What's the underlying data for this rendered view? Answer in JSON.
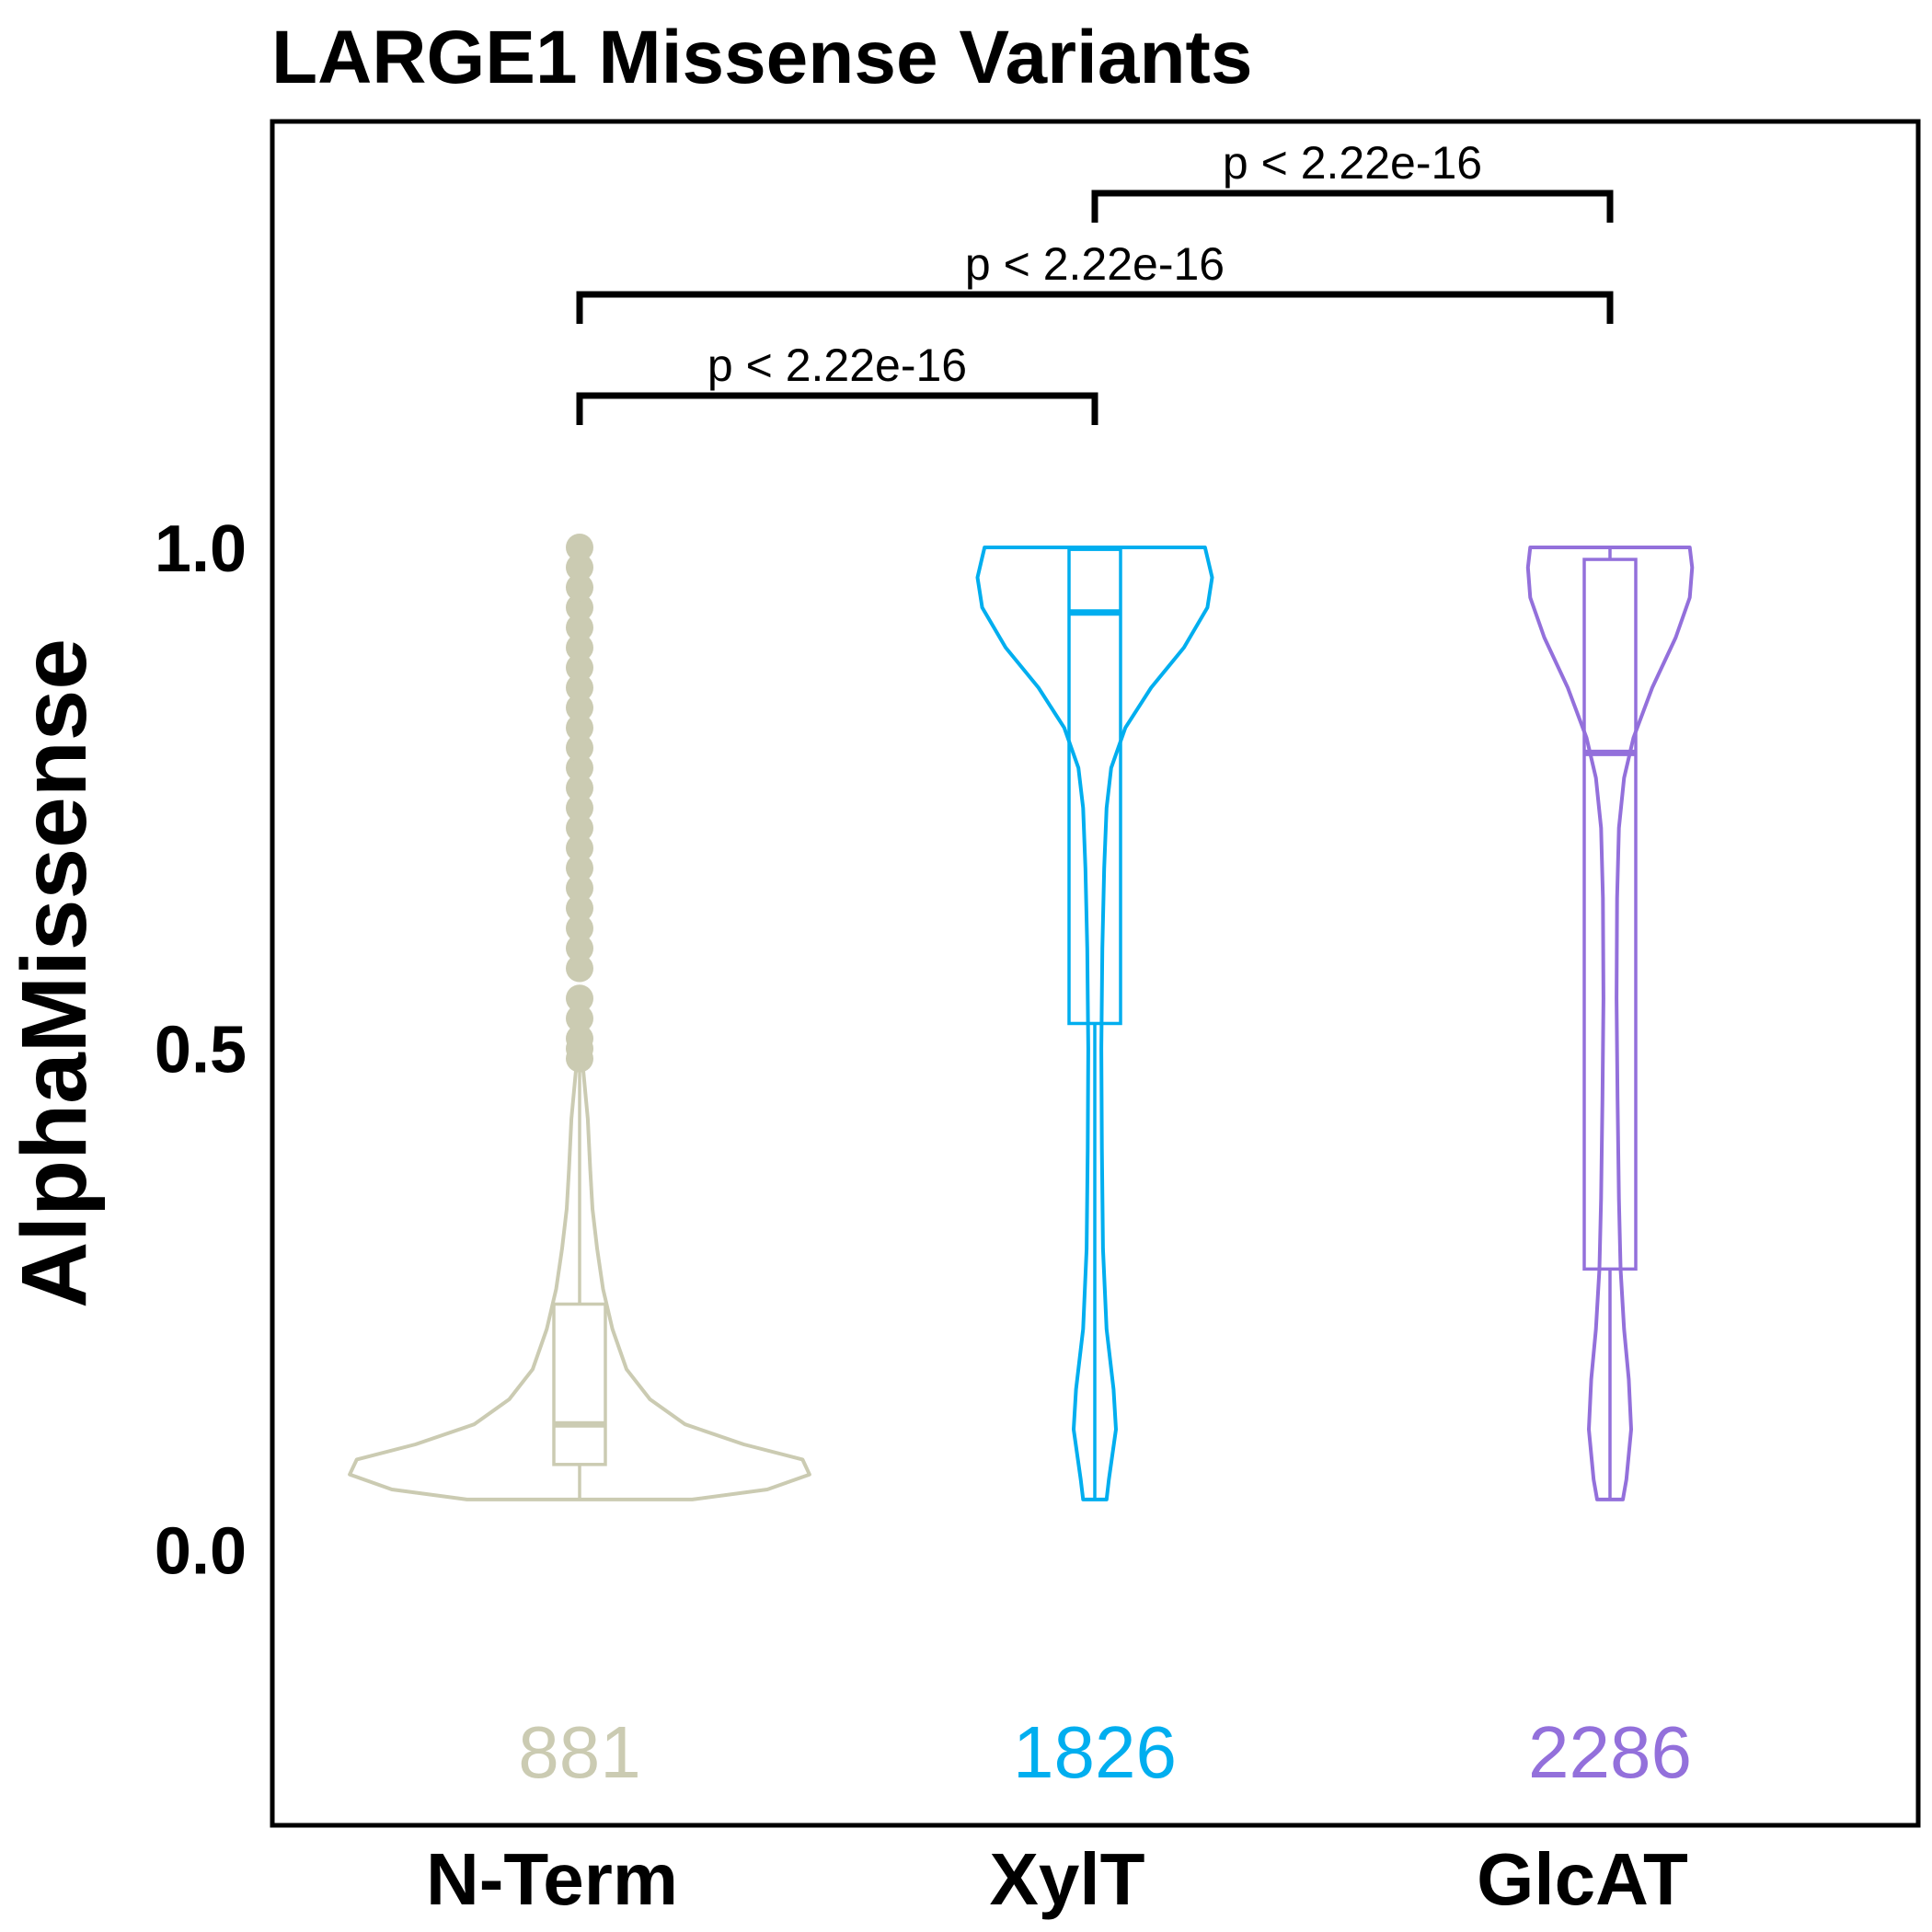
{
  "chart_data": {
    "type": "violin",
    "title": "LARGE1 Missense Variants",
    "xlabel": "",
    "ylabel": "AlphaMissense",
    "ylim": [
      -0.275,
      1.425
    ],
    "yticks": [
      {
        "value": 0.0,
        "label": "0.0"
      },
      {
        "value": 0.5,
        "label": "0.5"
      },
      {
        "value": 1.0,
        "label": "1.0"
      }
    ],
    "categories": [
      "N-Term",
      "XylT",
      "GlcAT"
    ],
    "series": [
      {
        "name": "N-Term",
        "color": "#CBCBB2",
        "n_label": "881",
        "box": {
          "q1": 0.085,
          "median": 0.125,
          "q3": 0.245,
          "whisker_low": 0.05,
          "whisker_high": 0.48
        },
        "outliers": [
          0.49,
          0.5,
          0.51,
          0.53,
          0.55,
          0.58,
          0.6,
          0.62,
          0.64,
          0.66,
          0.68,
          0.7,
          0.72,
          0.74,
          0.76,
          0.78,
          0.8,
          0.82,
          0.84,
          0.86,
          0.88,
          0.9,
          0.92,
          0.94,
          0.96,
          0.98,
          1.0
        ],
        "violin": {
          "y_min": 0.05,
          "y_max": 0.48,
          "profile": [
            [
              0.05,
              0.48
            ],
            [
              0.06,
              0.8
            ],
            [
              0.075,
              0.98
            ],
            [
              0.09,
              0.95
            ],
            [
              0.105,
              0.7
            ],
            [
              0.125,
              0.45
            ],
            [
              0.15,
              0.3
            ],
            [
              0.18,
              0.2
            ],
            [
              0.22,
              0.14
            ],
            [
              0.26,
              0.1
            ],
            [
              0.3,
              0.075
            ],
            [
              0.34,
              0.055
            ],
            [
              0.38,
              0.045
            ],
            [
              0.43,
              0.035
            ],
            [
              0.48,
              0.015
            ]
          ]
        }
      },
      {
        "name": "XylT",
        "color": "#00AEEF",
        "n_label": "1826",
        "box": {
          "q1": 0.525,
          "median": 0.935,
          "q3": 0.998,
          "whisker_low": 0.05,
          "whisker_high": 1.0
        },
        "outliers": [],
        "violin": {
          "y_min": 0.05,
          "y_max": 1.0,
          "profile": [
            [
              0.05,
              0.05
            ],
            [
              0.07,
              0.06
            ],
            [
              0.12,
              0.09
            ],
            [
              0.16,
              0.08
            ],
            [
              0.22,
              0.05
            ],
            [
              0.3,
              0.035
            ],
            [
              0.4,
              0.03
            ],
            [
              0.5,
              0.028
            ],
            [
              0.6,
              0.032
            ],
            [
              0.68,
              0.04
            ],
            [
              0.74,
              0.05
            ],
            [
              0.78,
              0.07
            ],
            [
              0.82,
              0.13
            ],
            [
              0.86,
              0.24
            ],
            [
              0.9,
              0.38
            ],
            [
              0.94,
              0.48
            ],
            [
              0.97,
              0.5
            ],
            [
              0.99,
              0.48
            ],
            [
              1.0,
              0.47
            ]
          ]
        }
      },
      {
        "name": "GlcAT",
        "color": "#9370DB",
        "n_label": "2286",
        "box": {
          "q1": 0.28,
          "median": 0.795,
          "q3": 0.988,
          "whisker_low": 0.05,
          "whisker_high": 1.0
        },
        "outliers": [],
        "violin": {
          "y_min": 0.05,
          "y_max": 1.0,
          "profile": [
            [
              0.05,
              0.055
            ],
            [
              0.07,
              0.07
            ],
            [
              0.12,
              0.09
            ],
            [
              0.17,
              0.08
            ],
            [
              0.22,
              0.06
            ],
            [
              0.28,
              0.045
            ],
            [
              0.35,
              0.038
            ],
            [
              0.45,
              0.032
            ],
            [
              0.55,
              0.028
            ],
            [
              0.65,
              0.03
            ],
            [
              0.72,
              0.038
            ],
            [
              0.77,
              0.06
            ],
            [
              0.81,
              0.1
            ],
            [
              0.86,
              0.18
            ],
            [
              0.91,
              0.28
            ],
            [
              0.95,
              0.34
            ],
            [
              0.98,
              0.35
            ],
            [
              1.0,
              0.34
            ]
          ]
        }
      }
    ],
    "comparisons": [
      {
        "from": "N-Term",
        "to": "XylT",
        "label": "p < 2.22e-16",
        "level": 0
      },
      {
        "from": "N-Term",
        "to": "GlcAT",
        "label": "p < 2.22e-16",
        "level": 1
      },
      {
        "from": "XylT",
        "to": "GlcAT",
        "label": "p < 2.22e-16",
        "level": 2
      }
    ],
    "grid": false,
    "legend": "none"
  }
}
